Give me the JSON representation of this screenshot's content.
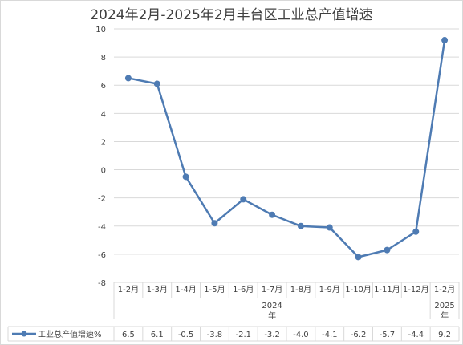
{
  "chart_data": {
    "type": "line",
    "title": "2024年2月-2025年2月丰台区工业总产值增速",
    "categories": [
      "1-2月",
      "1-3月",
      "1-4月",
      "1-5月",
      "1-6月",
      "1-7月",
      "1-8月",
      "1-9月",
      "1-10月",
      "1-11月",
      "1-12月",
      "1-2月"
    ],
    "group_labels": [
      {
        "label": "2024年",
        "from": 0,
        "to": 10
      },
      {
        "label": "2025年",
        "from": 11,
        "to": 11
      }
    ],
    "series": [
      {
        "name": "工业总产值增速%",
        "values": [
          6.5,
          6.1,
          -0.5,
          -3.8,
          -2.1,
          -3.2,
          -4.0,
          -4.1,
          -6.2,
          -5.7,
          -4.4,
          9.2
        ],
        "color": "#4e7bb3"
      }
    ],
    "yticks": [
      10,
      8,
      6,
      4,
      2,
      0,
      -2,
      -4,
      -6,
      -8
    ],
    "ylim": [
      -8,
      10
    ],
    "grid": true,
    "data_table": true
  }
}
